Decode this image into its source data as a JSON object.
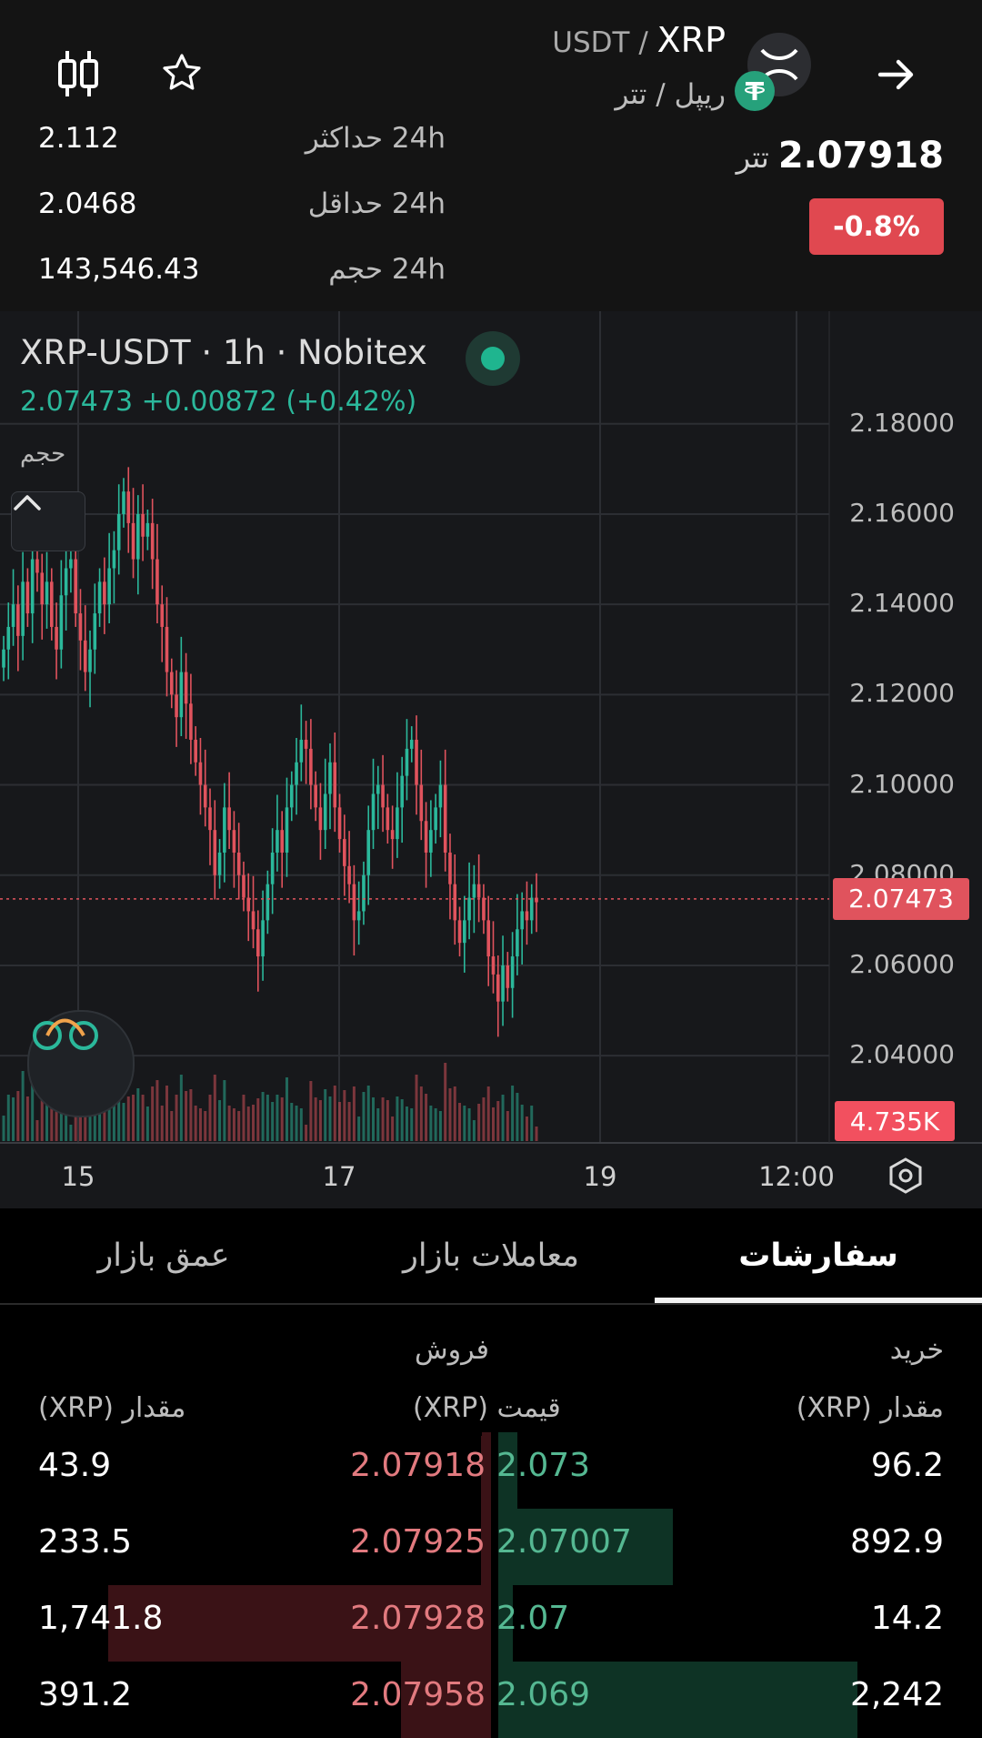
{
  "header": {
    "pair_base": "XRP",
    "pair_quote": "USDT",
    "pair_separator": " / ",
    "pair_subtitle": "ریپل / تتر",
    "last_price": "2.07918",
    "price_unit": "تتر",
    "change_24h": "-0.8%",
    "stats": [
      {
        "label": "24h حداکثر",
        "value": "2.112"
      },
      {
        "label": "24h حداقل",
        "value": "2.0468"
      },
      {
        "label": "24h حجم",
        "value": "143,546.43"
      }
    ],
    "icons": [
      "back-arrow-icon",
      "xrp-coin-icon",
      "tether-coin-icon",
      "favorite-star-icon",
      "candlestick-icon"
    ]
  },
  "chart": {
    "legend_symbol": "XRP-USDT",
    "legend_meta": " · 1h · Nobitex",
    "legend_values": "2.07473 +0.00872 (+0.42%)",
    "volume_label": "حجم",
    "current_price_tag": "2.07473",
    "volume_tag": "4.735K",
    "colors": {
      "up": "#2bb89b",
      "down": "#e0535d",
      "grid": "#2c2e33"
    }
  },
  "chart_data": {
    "type": "candlestick",
    "title": "XRP-USDT",
    "xlabel": "",
    "ylabel": "",
    "y_ticks": [
      "2.18000",
      "2.16000",
      "2.14000",
      "2.12000",
      "2.10000",
      "2.08000",
      "2.06000",
      "2.04000"
    ],
    "ylim": [
      2.036,
      2.186
    ],
    "x_ticks": [
      "15",
      "17",
      "19",
      "12:00"
    ],
    "last_price": 2.07473,
    "grid": true,
    "series": [
      {
        "values": [
          2.13,
          2.135,
          2.14,
          2.133,
          2.145,
          2.138,
          2.15,
          2.147,
          2.14,
          2.145,
          2.135,
          2.13,
          2.142,
          2.148,
          2.15,
          2.138,
          2.132,
          2.125,
          2.13,
          2.138,
          2.145,
          2.14,
          2.148,
          2.152,
          2.16,
          2.165,
          2.158,
          2.15,
          2.16,
          2.155,
          2.158,
          2.15,
          2.14,
          2.135,
          2.125,
          2.12,
          2.115,
          2.125,
          2.118,
          2.11,
          2.105,
          2.1,
          2.095,
          2.09,
          2.08,
          2.085,
          2.095,
          2.09,
          2.085,
          2.08,
          2.075,
          2.072,
          2.068,
          2.062,
          2.07,
          2.078,
          2.085,
          2.09,
          2.085,
          2.095,
          2.1,
          2.105,
          2.11,
          2.108,
          2.1,
          2.095,
          2.09,
          2.098,
          2.105,
          2.095,
          2.088,
          2.082,
          2.078,
          2.07,
          2.072,
          2.08,
          2.09,
          2.098,
          2.1,
          2.095,
          2.09,
          2.088,
          2.095,
          2.102,
          2.108,
          2.11,
          2.1,
          2.092,
          2.085,
          2.09,
          2.095,
          2.1,
          2.085,
          2.078,
          2.07,
          2.065,
          2.07,
          2.075,
          2.078,
          2.075,
          2.07,
          2.062,
          2.058,
          2.052,
          2.06,
          2.055,
          2.062,
          2.068,
          2.072,
          2.07,
          2.075,
          2.074
        ]
      }
    ]
  },
  "tabs": [
    {
      "label": "سفارشات",
      "active": true
    },
    {
      "label": "معاملات بازار",
      "active": false
    },
    {
      "label": "عمق بازار",
      "active": false
    }
  ],
  "orderbook": {
    "buy_header": "خرید",
    "sell_header": "فروش",
    "col_amount_left": "مقدار (XRP)",
    "col_price": "قیمت (XRP)",
    "col_amount_right": "مقدار (XRP)",
    "rows": [
      {
        "sell_amount": "43.9",
        "sell_price": "2.07918",
        "buy_price": "2.073",
        "buy_amount": "96.2",
        "sell_depth": 0.02,
        "buy_depth": 0.04
      },
      {
        "sell_amount": "233.5",
        "sell_price": "2.07925",
        "buy_price": "2.07007",
        "buy_amount": "892.9",
        "sell_depth": 0.02,
        "buy_depth": 0.37
      },
      {
        "sell_amount": "1,741.8",
        "sell_price": "2.07928",
        "buy_price": "2.07",
        "buy_amount": "14.2",
        "sell_depth": 0.81,
        "buy_depth": 0.0
      },
      {
        "sell_amount": "391.2",
        "sell_price": "2.07958",
        "buy_price": "2.069",
        "buy_amount": "2,242",
        "sell_depth": 0.19,
        "buy_depth": 0.76
      }
    ]
  }
}
